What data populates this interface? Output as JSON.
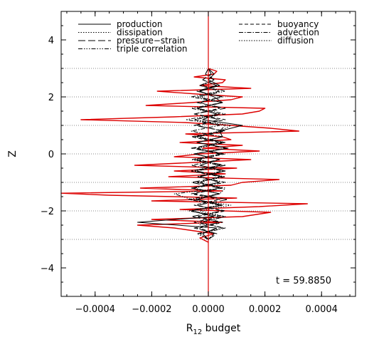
{
  "chart_data": {
    "type": "line",
    "xlabel": "R",
    "xlabel_sub": "12",
    "xlabel_rest": " budget",
    "ylabel": "Z",
    "xlim": [
      -0.00052,
      0.00052
    ],
    "ylim": [
      -5,
      5
    ],
    "xticks": [
      -0.0004,
      -0.0002,
      0.0,
      0.0002,
      0.0004
    ],
    "xtick_labels": [
      "−0.0004",
      "−0.0002",
      "0.0000",
      "0.0002",
      "0.0004"
    ],
    "yticks": [
      -4,
      -2,
      0,
      2,
      4
    ],
    "ytick_labels": [
      "−4",
      "−2",
      "0",
      "2",
      "4"
    ],
    "reference_lines_z": [
      -3,
      -2,
      -1,
      0,
      1,
      2,
      3
    ],
    "annotation": "t = 59.8850",
    "highlight_color": "#dd0000",
    "legend_left": [
      {
        "name": "production",
        "style": "solid"
      },
      {
        "name": "dissipation",
        "style": "dotted"
      },
      {
        "name": "pressure−strain",
        "style": "longdash"
      },
      {
        "name": "triple correlation",
        "style": "dashdotdotdot"
      }
    ],
    "legend_right": [
      {
        "name": "buoyancy",
        "style": "dashed"
      },
      {
        "name": "advection",
        "style": "dashdot"
      },
      {
        "name": "diffusion",
        "style": "dotted"
      }
    ],
    "series": [
      {
        "name": "diffusion",
        "color": "#dd0000",
        "style": "solid",
        "z": [
          -3.1,
          -2.95,
          -2.8,
          -2.7,
          -2.6,
          -2.5,
          -2.4,
          -2.3,
          -2.2,
          -2.05,
          -1.95,
          -1.85,
          -1.75,
          -1.65,
          -1.55,
          -1.45,
          -1.38,
          -1.3,
          -1.2,
          -1.1,
          -1.0,
          -0.9,
          -0.8,
          -0.7,
          -0.6,
          -0.5,
          -0.4,
          -0.3,
          -0.2,
          -0.1,
          0.0,
          0.1,
          0.2,
          0.3,
          0.4,
          0.5,
          0.6,
          0.7,
          0.8,
          0.9,
          1.0,
          1.1,
          1.2,
          1.3,
          1.4,
          1.5,
          1.6,
          1.7,
          1.8,
          1.9,
          2.0,
          2.1,
          2.2,
          2.3,
          2.4,
          2.5,
          2.6,
          2.7,
          2.8,
          2.9,
          3.0
        ],
        "x": [
          0.0,
          -3e-05,
          2e-05,
          -5e-05,
          -0.00012,
          -0.00025,
          5e-05,
          -0.0002,
          0.00012,
          0.00022,
          -0.0001,
          0.00018,
          0.00035,
          -0.0002,
          0.0001,
          -0.00035,
          -0.00052,
          5e-05,
          -0.00024,
          8e-05,
          0.00012,
          0.00025,
          -0.00014,
          6e-05,
          -0.00012,
          0.0001,
          -0.00026,
          -5e-05,
          0.00015,
          -0.00012,
          -3e-05,
          0.00018,
          -2e-05,
          0.00012,
          -0.0001,
          8e-05,
          5e-05,
          -8e-05,
          0.00032,
          0.00022,
          8e-05,
          -8e-05,
          -0.00045,
          -0.00012,
          0.00012,
          0.00018,
          0.0002,
          -0.00022,
          -6e-05,
          8e-05,
          0.00012,
          -4e-05,
          -0.00018,
          0.00015,
          -3e-05,
          5e-05,
          6e-05,
          -5e-05,
          2e-05,
          3e-05,
          0.0
        ]
      },
      {
        "name": "production",
        "color": "#000000",
        "style": "solid",
        "z": [
          -3.0,
          -2.8,
          -2.6,
          -2.4,
          -2.2,
          -2.0,
          -1.8,
          -1.6,
          -1.4,
          -1.2,
          -1.0,
          -0.8,
          -0.6,
          -0.4,
          -0.2,
          0.0,
          0.2,
          0.4,
          0.6,
          0.8,
          1.0,
          1.2,
          1.4,
          1.6,
          1.8,
          2.0,
          2.2,
          2.4,
          2.6,
          2.8,
          3.0
        ],
        "x": [
          0.0,
          -2e-05,
          3e-05,
          -0.00025,
          2e-05,
          -6e-05,
          5e-05,
          -4e-05,
          4e-05,
          -6e-05,
          4e-05,
          -3e-05,
          6e-05,
          -3e-05,
          4e-05,
          -5e-05,
          7e-05,
          -4e-05,
          5e-05,
          4e-05,
          0.00012,
          -2e-05,
          3e-05,
          -4e-05,
          5e-05,
          2e-05,
          -3e-05,
          4e-05,
          0.0,
          2e-05,
          0.0
        ]
      },
      {
        "name": "dissipation",
        "color": "#000000",
        "style": "dotted",
        "z": [
          -3.0,
          -2.8,
          -2.6,
          -2.4,
          -2.2,
          -2.0,
          -1.8,
          -1.6,
          -1.4,
          -1.2,
          -1.0,
          -0.8,
          -0.6,
          -0.4,
          -0.2,
          0.0,
          0.2,
          0.4,
          0.6,
          0.8,
          1.0,
          1.2,
          1.4,
          1.6,
          1.8,
          2.0,
          2.2,
          2.4,
          2.6,
          2.8,
          3.0
        ],
        "x": [
          0.0,
          2e-05,
          -4e-05,
          -2e-05,
          6e-05,
          -3e-05,
          8e-05,
          -5e-05,
          4e-05,
          6e-05,
          -4e-05,
          5e-05,
          -6e-05,
          4e-05,
          -3e-05,
          5e-05,
          -4e-05,
          6e-05,
          -3e-05,
          4e-05,
          8e-05,
          -5e-05,
          3e-05,
          -4e-05,
          5e-05,
          -3e-05,
          4e-05,
          -2e-05,
          2e-05,
          0.0,
          0.0
        ]
      },
      {
        "name": "pressure−strain",
        "color": "#000000",
        "style": "longdash",
        "z": [
          -3.0,
          -2.8,
          -2.6,
          -2.4,
          -2.2,
          -2.0,
          -1.8,
          -1.6,
          -1.4,
          -1.2,
          -1.0,
          -0.8,
          -0.6,
          -0.4,
          -0.2,
          0.0,
          0.2,
          0.4,
          0.6,
          0.8,
          1.0,
          1.2,
          1.4,
          1.6,
          1.8,
          2.0,
          2.2,
          2.4,
          2.6,
          2.8,
          3.0
        ],
        "x": [
          0.0,
          3e-05,
          -5e-05,
          4e-05,
          -6e-05,
          5e-05,
          -4e-05,
          7e-05,
          -5e-05,
          4e-05,
          -6e-05,
          5e-05,
          -4e-05,
          6e-05,
          -5e-05,
          4e-05,
          -6e-05,
          5e-05,
          -4e-05,
          6e-05,
          -5e-05,
          4e-05,
          -5e-05,
          6e-05,
          -4e-05,
          5e-05,
          -4e-05,
          3e-05,
          -2e-05,
          1e-05,
          0.0
        ]
      },
      {
        "name": "triple correlation",
        "color": "#000000",
        "style": "dashdotdotdot",
        "z": [
          -3.0,
          -2.8,
          -2.6,
          -2.4,
          -2.2,
          -2.0,
          -1.8,
          -1.6,
          -1.4,
          -1.2,
          -1.0,
          -0.8,
          -0.6,
          -0.4,
          -0.2,
          0.0,
          0.2,
          0.4,
          0.6,
          0.8,
          1.0,
          1.2,
          1.4,
          1.6,
          1.8,
          2.0,
          2.2,
          2.4,
          2.6,
          2.8,
          3.0
        ],
        "x": [
          0.0,
          -4e-05,
          5e-05,
          -3e-05,
          6e-05,
          -7e-05,
          4e-05,
          -6e-05,
          -0.00012,
          5e-05,
          -4e-05,
          6e-05,
          -5e-05,
          4e-05,
          -6e-05,
          5e-05,
          -4e-05,
          6e-05,
          -5e-05,
          4e-05,
          6e-05,
          -8e-05,
          4e-05,
          -6e-05,
          5e-05,
          -4e-05,
          6e-05,
          -3e-05,
          2e-05,
          -1e-05,
          0.0
        ]
      },
      {
        "name": "buoyancy",
        "color": "#000000",
        "style": "dashed",
        "z": [
          -3.0,
          -2.8,
          -2.6,
          -2.4,
          -2.2,
          -2.0,
          -1.8,
          -1.6,
          -1.4,
          -1.2,
          -1.0,
          -0.8,
          -0.6,
          -0.4,
          -0.2,
          0.0,
          0.2,
          0.4,
          0.6,
          0.8,
          1.0,
          1.2,
          1.4,
          1.6,
          1.8,
          2.0,
          2.2,
          2.4,
          2.6,
          2.8,
          3.0
        ],
        "x": [
          0.0,
          2e-05,
          -3e-05,
          5e-05,
          -4e-05,
          6e-05,
          -5e-05,
          4e-05,
          -6e-05,
          5e-05,
          -3e-05,
          4e-05,
          -6e-05,
          5e-05,
          -4e-05,
          6e-05,
          -5e-05,
          4e-05,
          -6e-05,
          5e-05,
          -4e-05,
          6e-05,
          -5e-05,
          4e-05,
          -3e-05,
          5e-05,
          -4e-05,
          3e-05,
          -2e-05,
          1e-05,
          0.0
        ]
      },
      {
        "name": "advection",
        "color": "#000000",
        "style": "dashdot",
        "z": [
          -3.0,
          -2.8,
          -2.6,
          -2.4,
          -2.2,
          -2.0,
          -1.8,
          -1.6,
          -1.4,
          -1.2,
          -1.0,
          -0.8,
          -0.6,
          -0.4,
          -0.2,
          0.0,
          0.2,
          0.4,
          0.6,
          0.8,
          1.0,
          1.2,
          1.4,
          1.6,
          1.8,
          2.0,
          2.2,
          2.4,
          2.6,
          2.8,
          3.0
        ],
        "x": [
          0.0,
          -3e-05,
          6e-05,
          -5e-05,
          4e-05,
          -6e-05,
          5e-05,
          -7e-05,
          4e-05,
          -5e-05,
          6e-05,
          -4e-05,
          5e-05,
          -6e-05,
          4e-05,
          -5e-05,
          6e-05,
          -4e-05,
          5e-05,
          -6e-05,
          4e-05,
          -5e-05,
          6e-05,
          -4e-05,
          5e-05,
          -6e-05,
          4e-05,
          -3e-05,
          2e-05,
          -1e-05,
          0.0
        ]
      }
    ]
  }
}
